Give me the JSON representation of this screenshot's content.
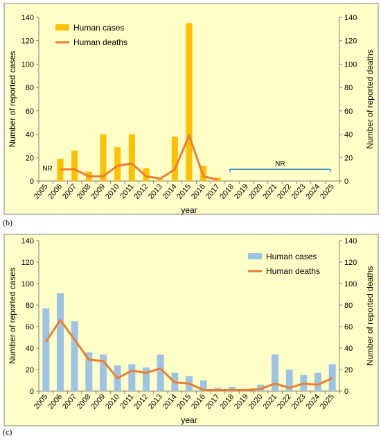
{
  "colors": {
    "panel_bg": "#FFFFC8",
    "panel_border": "#7F7F7F",
    "axis": "#7F7F7F",
    "text": "#000000",
    "panel_b_cases": "#FFC000",
    "panel_c_cases": "#9DC3E6",
    "deaths": "#ED7D31",
    "nr_bracket": "#0070C0"
  },
  "panel_labels": {
    "b": "(b)",
    "c": "(c)"
  },
  "chart_data": [
    {
      "id": "b",
      "type": "bar",
      "categories": [
        "2005",
        "2006",
        "2007",
        "2008",
        "2009",
        "2010",
        "2011",
        "2012",
        "2013",
        "2014",
        "2015",
        "2016",
        "2017",
        "2018",
        "2019",
        "2020",
        "2021",
        "2022",
        "2023",
        "2024",
        "2025"
      ],
      "series": [
        {
          "name": "Human cases",
          "type": "bar",
          "axis": "left",
          "values": [
            null,
            19,
            26,
            8,
            40,
            29,
            40,
            11,
            1,
            38,
            135,
            13,
            3,
            null,
            null,
            null,
            null,
            null,
            null,
            null,
            null
          ]
        },
        {
          "name": "Human deaths",
          "type": "line",
          "axis": "right",
          "values": [
            null,
            10,
            10,
            4,
            4,
            13,
            15,
            4,
            2,
            10,
            39,
            4,
            1,
            null,
            null,
            null,
            null,
            null,
            null,
            null,
            null
          ]
        }
      ],
      "xlabel": "year",
      "ylabel": "Number of reported cases",
      "ylabel_right": "Number of reported deaths",
      "ylim": [
        0,
        140
      ],
      "yticks": [
        0,
        20,
        40,
        60,
        80,
        100,
        120,
        140
      ],
      "annotations": [
        {
          "text": "NR",
          "category": "2005"
        },
        {
          "text": "NR",
          "bracket_from": "2018",
          "bracket_to": "2025"
        }
      ],
      "legend": "top-left",
      "grid": false
    },
    {
      "id": "c",
      "type": "bar",
      "categories": [
        "2005",
        "2006",
        "2007",
        "2008",
        "2009",
        "2010",
        "2011",
        "2012",
        "2013",
        "2014",
        "2015",
        "2016",
        "2017",
        "2018",
        "2019",
        "2020",
        "2021",
        "2022",
        "2023",
        "2024",
        "2025"
      ],
      "series": [
        {
          "name": "Human cases",
          "type": "bar",
          "axis": "left",
          "values": [
            77,
            91,
            65,
            36,
            34,
            24,
            25,
            22,
            34,
            17,
            14,
            10,
            3,
            4,
            0,
            6,
            34,
            20,
            15,
            17,
            25
          ]
        },
        {
          "name": "Human deaths",
          "type": "line",
          "axis": "right",
          "values": [
            46,
            66,
            48,
            29,
            28,
            12,
            19,
            17,
            21,
            8,
            7,
            1,
            1,
            1,
            1,
            2,
            7,
            3,
            7,
            6,
            12
          ]
        }
      ],
      "xlabel": "year",
      "ylabel": "Number of reported cases",
      "ylabel_right": "Number of reported deaths",
      "ylim": [
        0,
        140
      ],
      "yticks": [
        0,
        20,
        40,
        60,
        80,
        100,
        120,
        140
      ],
      "legend": "top-right",
      "grid": false
    }
  ]
}
